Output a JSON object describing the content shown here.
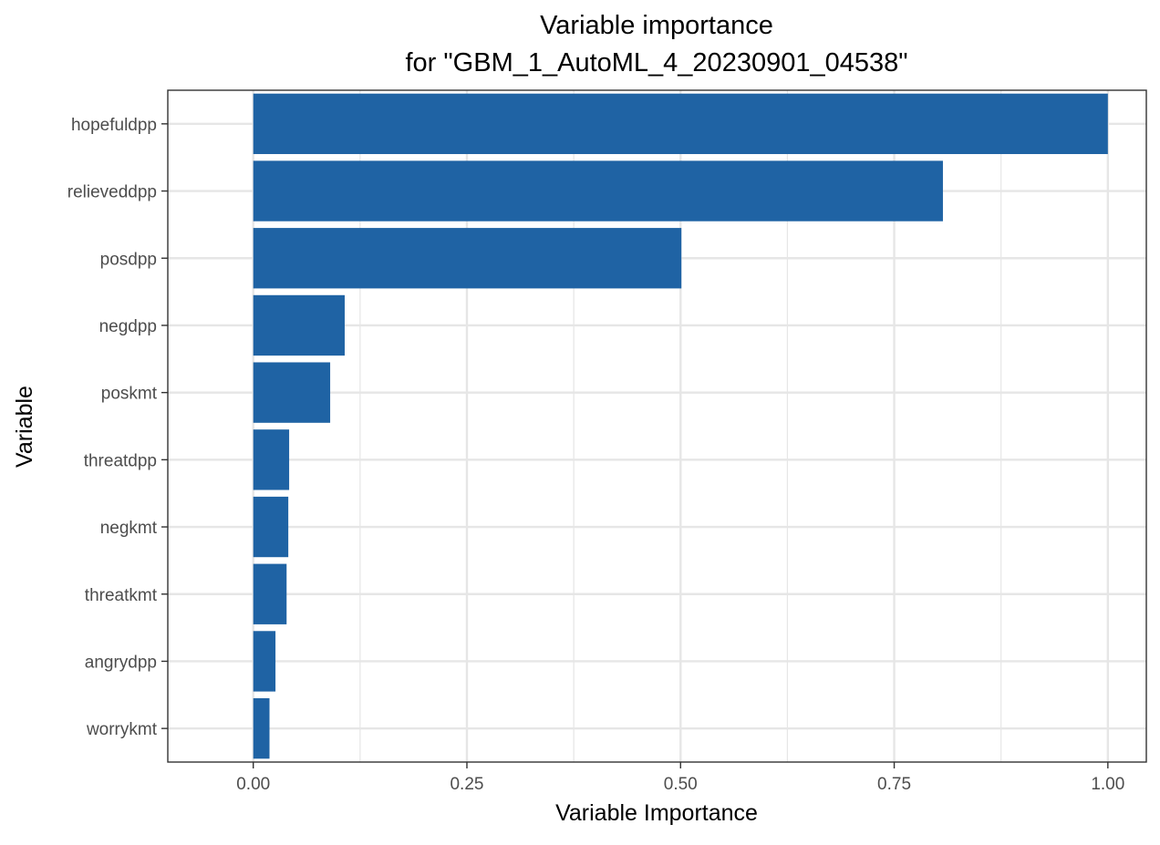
{
  "chart_data": {
    "type": "bar",
    "orientation": "horizontal",
    "title_lines": [
      "Variable importance",
      "for \"GBM_1_AutoML_4_20230901_04538\""
    ],
    "xlabel": "Variable Importance",
    "ylabel": "Variable",
    "xlim": [
      -0.1,
      1.045
    ],
    "xticks": [
      0.0,
      0.25,
      0.5,
      0.75,
      1.0
    ],
    "xtick_labels": [
      "0.00",
      "0.25",
      "0.50",
      "0.75",
      "1.00"
    ],
    "categories": [
      "hopefuldpp",
      "relieveddpp",
      "posdpp",
      "negdpp",
      "poskmt",
      "threatdpp",
      "negkmt",
      "threatkmt",
      "angrydpp",
      "worrykmt"
    ],
    "values": [
      1.0,
      0.807,
      0.501,
      0.107,
      0.09,
      0.042,
      0.041,
      0.039,
      0.026,
      0.019
    ],
    "grid": true,
    "legend": "none"
  },
  "colors": {
    "bar": "#1f63a4",
    "grid": "#e6e6e6",
    "panel_border": "#333333",
    "tick_mark": "#333333",
    "tick_label": "#4d4d4d",
    "text": "#000000"
  }
}
